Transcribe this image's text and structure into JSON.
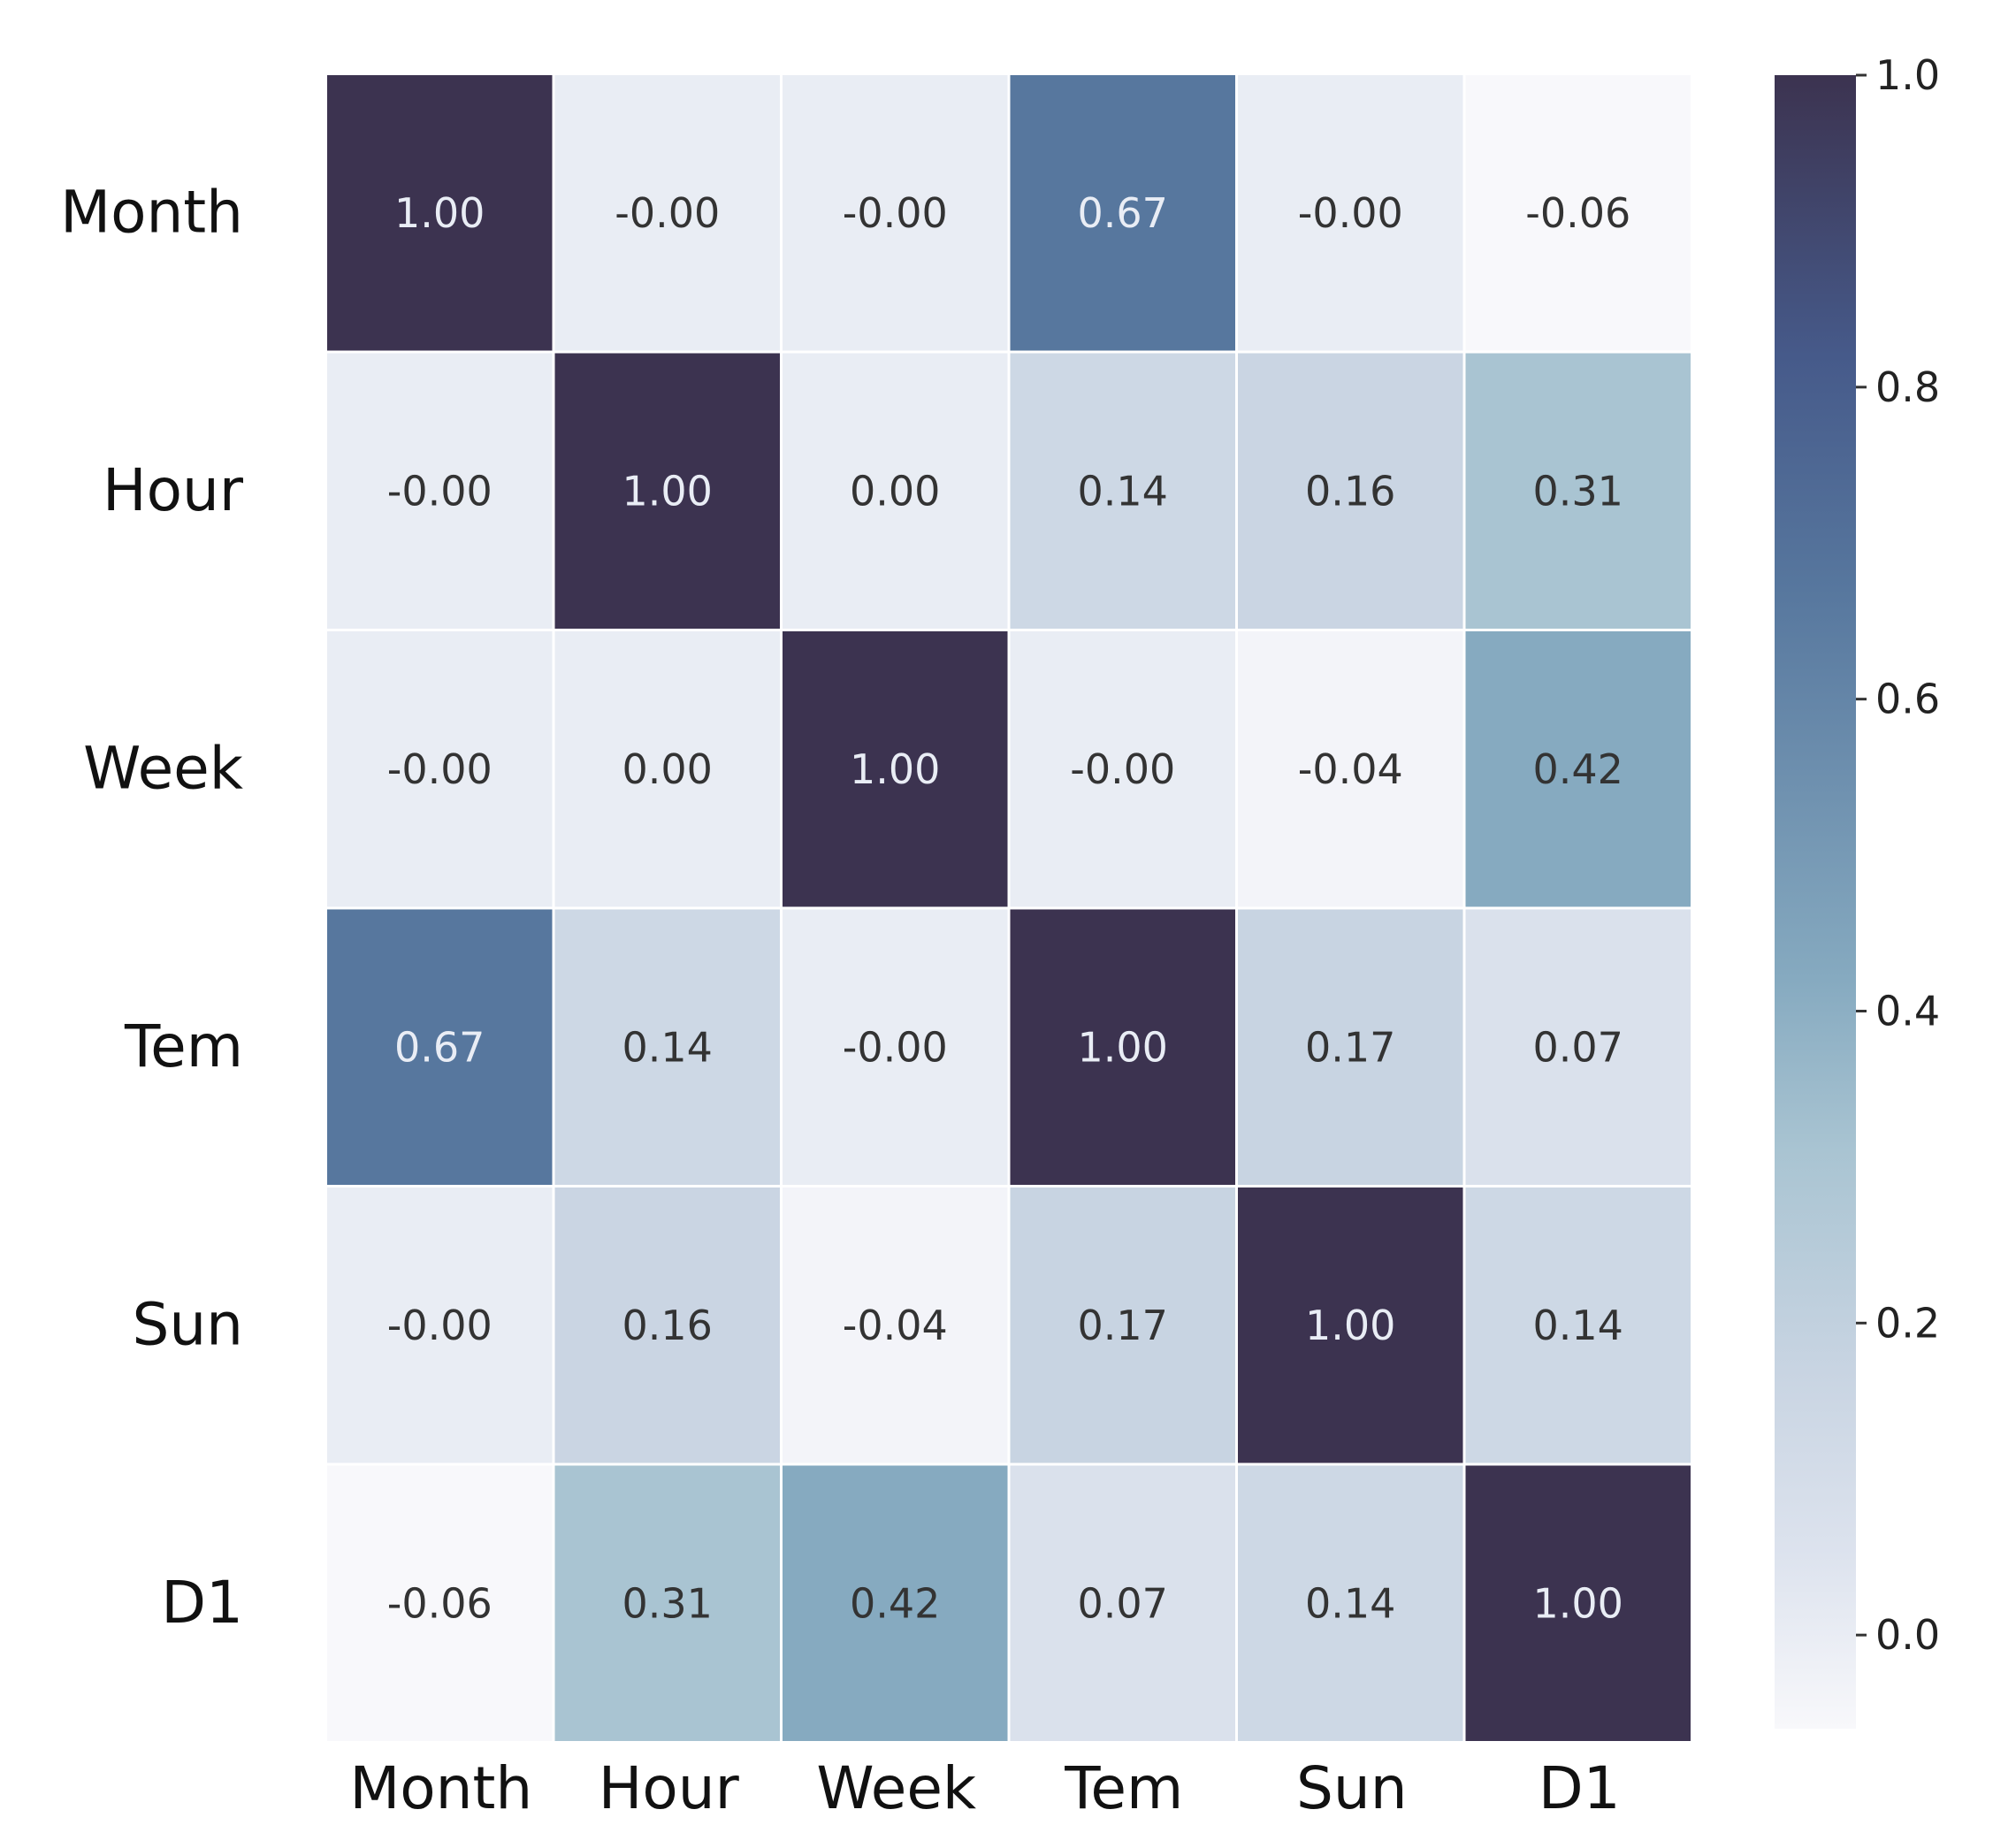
{
  "chart_data": {
    "type": "heatmap",
    "row_labels": [
      "Month",
      "Hour",
      "Week",
      "Tem",
      "Sun",
      "D1"
    ],
    "col_labels": [
      "Month",
      "Hour",
      "Week",
      "Tem",
      "Sun",
      "D1"
    ],
    "values": [
      [
        1.0,
        -0.0,
        -0.0,
        0.67,
        -0.0,
        -0.06
      ],
      [
        -0.0,
        1.0,
        0.0,
        0.14,
        0.16,
        0.31
      ],
      [
        -0.0,
        0.0,
        1.0,
        -0.0,
        -0.04,
        0.42
      ],
      [
        0.67,
        0.14,
        -0.0,
        1.0,
        0.17,
        0.07
      ],
      [
        -0.0,
        0.16,
        -0.04,
        0.17,
        1.0,
        0.14
      ],
      [
        -0.06,
        0.31,
        0.42,
        0.07,
        0.14,
        1.0
      ]
    ],
    "value_labels": [
      [
        "1.00",
        "-0.00",
        "-0.00",
        "0.67",
        "-0.00",
        "-0.06"
      ],
      [
        "-0.00",
        "1.00",
        "0.00",
        "0.14",
        "0.16",
        "0.31"
      ],
      [
        "-0.00",
        "0.00",
        "1.00",
        "-0.00",
        "-0.04",
        "0.42"
      ],
      [
        "0.67",
        "0.14",
        "-0.00",
        "1.00",
        "0.17",
        "0.07"
      ],
      [
        "-0.00",
        "0.16",
        "-0.04",
        "0.17",
        "1.00",
        "0.14"
      ],
      [
        "-0.06",
        "0.31",
        "0.42",
        "0.07",
        "0.14",
        "1.00"
      ]
    ],
    "colorbar": {
      "vmin": -0.06,
      "vmax": 1.0,
      "ticks": [
        0.0,
        0.2,
        0.4,
        0.6,
        0.8,
        1.0
      ],
      "tick_labels": [
        "0.0",
        "0.2",
        "0.4",
        "0.6",
        "0.8",
        "1.0"
      ]
    },
    "colormap": [
      {
        "v": -0.06,
        "color": "#f8f8fb"
      },
      {
        "v": 0.05,
        "color": "#dde3ee"
      },
      {
        "v": 0.17,
        "color": "#c8d4e2"
      },
      {
        "v": 0.31,
        "color": "#a9c4d2"
      },
      {
        "v": 0.42,
        "color": "#86aac0"
      },
      {
        "v": 0.67,
        "color": "#57779e"
      },
      {
        "v": 0.82,
        "color": "#465a8a"
      },
      {
        "v": 1.0,
        "color": "#3c3350"
      }
    ],
    "grid": false,
    "cell_border_color": "#ffffff",
    "annotation_dark_color": "#333333",
    "annotation_light_color": "#e9edf5"
  }
}
